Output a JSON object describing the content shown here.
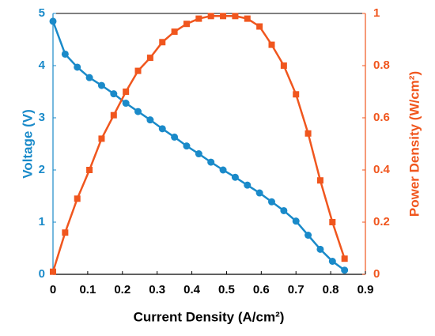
{
  "chart_data": {
    "type": "line",
    "x_label": "Current Density (A/cm²)",
    "y_label": "Voltage (V)",
    "y2_label": "Power Density (W/cm²)",
    "x": [
      0,
      0.035,
      0.07,
      0.105,
      0.14,
      0.175,
      0.21,
      0.245,
      0.28,
      0.315,
      0.35,
      0.385,
      0.42,
      0.455,
      0.49,
      0.525,
      0.56,
      0.595,
      0.63,
      0.665,
      0.7,
      0.735,
      0.77,
      0.805,
      0.84
    ],
    "series": [
      {
        "name": "Voltage",
        "color": "#1a8ac9",
        "marker": "circle",
        "values": [
          4.85,
          4.22,
          3.97,
          3.77,
          3.62,
          3.46,
          3.28,
          3.12,
          2.96,
          2.79,
          2.63,
          2.46,
          2.31,
          2.15,
          2.0,
          1.86,
          1.71,
          1.56,
          1.39,
          1.22,
          1.02,
          0.75,
          0.48,
          0.25,
          0.08
        ]
      },
      {
        "name": "Power Density",
        "color": "#f0561e",
        "marker": "square",
        "axis": "y2",
        "values": [
          0.01,
          0.16,
          0.29,
          0.4,
          0.52,
          0.61,
          0.7,
          0.78,
          0.83,
          0.89,
          0.93,
          0.96,
          0.98,
          0.99,
          0.99,
          0.99,
          0.98,
          0.95,
          0.88,
          0.8,
          0.69,
          0.54,
          0.36,
          0.2,
          0.06
        ]
      }
    ],
    "xlim": [
      0,
      0.9
    ],
    "xticks": [
      0,
      0.1,
      0.2,
      0.3,
      0.4,
      0.5,
      0.6,
      0.7,
      0.8,
      0.9
    ],
    "ylim": [
      0,
      5
    ],
    "yticks": [
      0,
      1,
      2,
      3,
      4,
      5
    ],
    "y2lim": [
      0,
      1
    ],
    "y2ticks": [
      0,
      0.2,
      0.4,
      0.6,
      0.8,
      1
    ]
  }
}
